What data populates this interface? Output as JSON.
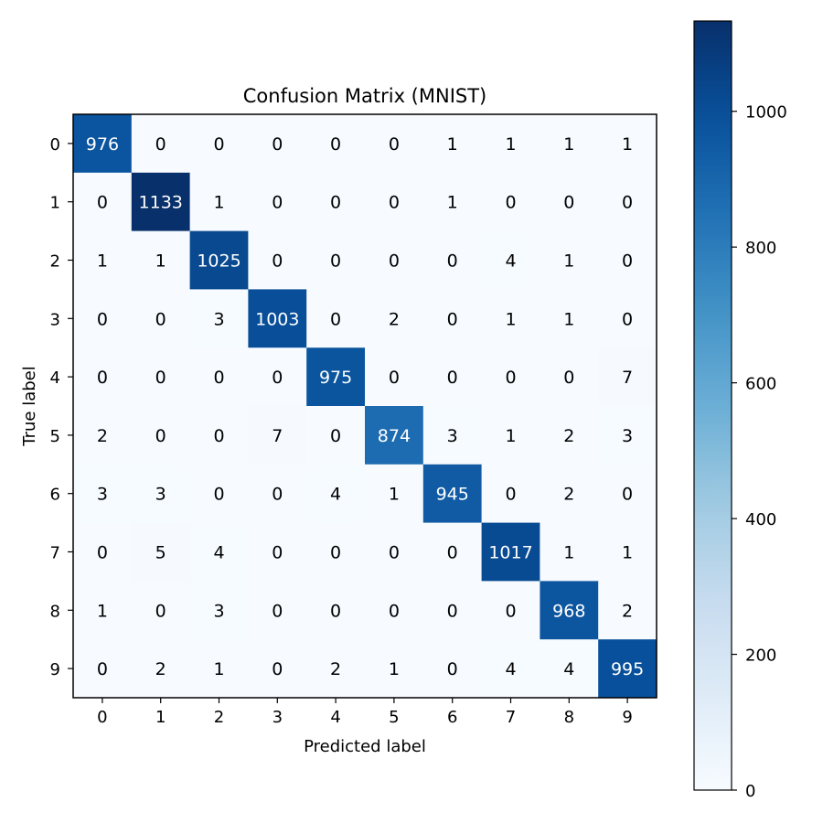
{
  "chart_data": {
    "type": "heatmap",
    "title": "Confusion Matrix (MNIST)",
    "xlabel": "Predicted label",
    "ylabel": "True label",
    "x_categories": [
      "0",
      "1",
      "2",
      "3",
      "4",
      "5",
      "6",
      "7",
      "8",
      "9"
    ],
    "y_categories": [
      "0",
      "1",
      "2",
      "3",
      "4",
      "5",
      "6",
      "7",
      "8",
      "9"
    ],
    "values": [
      [
        976,
        0,
        0,
        0,
        0,
        0,
        1,
        1,
        1,
        1
      ],
      [
        0,
        1133,
        1,
        0,
        0,
        0,
        1,
        0,
        0,
        0
      ],
      [
        1,
        1,
        1025,
        0,
        0,
        0,
        0,
        4,
        1,
        0
      ],
      [
        0,
        0,
        3,
        1003,
        0,
        2,
        0,
        1,
        1,
        0
      ],
      [
        0,
        0,
        0,
        0,
        975,
        0,
        0,
        0,
        0,
        7
      ],
      [
        2,
        0,
        0,
        7,
        0,
        874,
        3,
        1,
        2,
        3
      ],
      [
        3,
        3,
        0,
        0,
        4,
        1,
        945,
        0,
        2,
        0
      ],
      [
        0,
        5,
        4,
        0,
        0,
        0,
        0,
        1017,
        1,
        1
      ],
      [
        1,
        0,
        3,
        0,
        0,
        0,
        0,
        0,
        968,
        2
      ],
      [
        0,
        2,
        1,
        0,
        2,
        1,
        0,
        4,
        4,
        995
      ]
    ],
    "colormap": "Blues",
    "colorbar": {
      "range": [
        0,
        1133
      ],
      "ticks": [
        0,
        200,
        400,
        600,
        800,
        1000
      ]
    },
    "colors": {
      "low": "#f7fbff",
      "high": "#08306b",
      "text_light": "#ffffff",
      "text_dark": "#000000"
    }
  }
}
